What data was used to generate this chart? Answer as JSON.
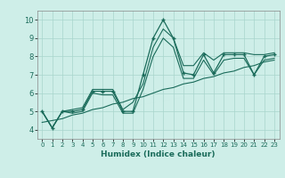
{
  "title": "",
  "xlabel": "Humidex (Indice chaleur)",
  "bg_color": "#ceeee8",
  "line_color": "#1a6b5a",
  "grid_color": "#a8d5cc",
  "xlim": [
    -0.5,
    23.5
  ],
  "ylim": [
    3.5,
    10.5
  ],
  "xticks": [
    0,
    1,
    2,
    3,
    4,
    5,
    6,
    7,
    8,
    9,
    10,
    11,
    12,
    13,
    14,
    15,
    16,
    17,
    18,
    19,
    20,
    21,
    22,
    23
  ],
  "yticks": [
    4,
    5,
    6,
    7,
    8,
    9,
    10
  ],
  "series": {
    "main": [
      5.0,
      4.1,
      5.0,
      5.0,
      5.1,
      6.1,
      6.1,
      6.1,
      5.0,
      5.0,
      7.0,
      9.0,
      10.0,
      9.0,
      7.1,
      7.0,
      8.1,
      7.1,
      8.1,
      8.1,
      8.1,
      7.0,
      8.0,
      8.1
    ],
    "upper": [
      5.0,
      4.1,
      5.0,
      5.1,
      5.2,
      6.2,
      6.2,
      6.2,
      5.1,
      5.5,
      6.5,
      8.5,
      9.5,
      9.0,
      7.5,
      7.5,
      8.2,
      7.8,
      8.2,
      8.2,
      8.2,
      8.1,
      8.1,
      8.2
    ],
    "lower": [
      5.0,
      4.1,
      5.0,
      4.9,
      5.0,
      6.0,
      5.9,
      5.9,
      4.9,
      4.9,
      6.2,
      8.0,
      9.0,
      8.5,
      6.8,
      6.8,
      7.8,
      7.0,
      7.8,
      7.9,
      7.9,
      7.0,
      7.8,
      7.9
    ],
    "trend": [
      4.4,
      4.5,
      4.6,
      4.8,
      4.9,
      5.1,
      5.2,
      5.4,
      5.5,
      5.7,
      5.8,
      6.0,
      6.2,
      6.3,
      6.5,
      6.6,
      6.8,
      6.9,
      7.1,
      7.2,
      7.4,
      7.5,
      7.7,
      7.8
    ]
  }
}
